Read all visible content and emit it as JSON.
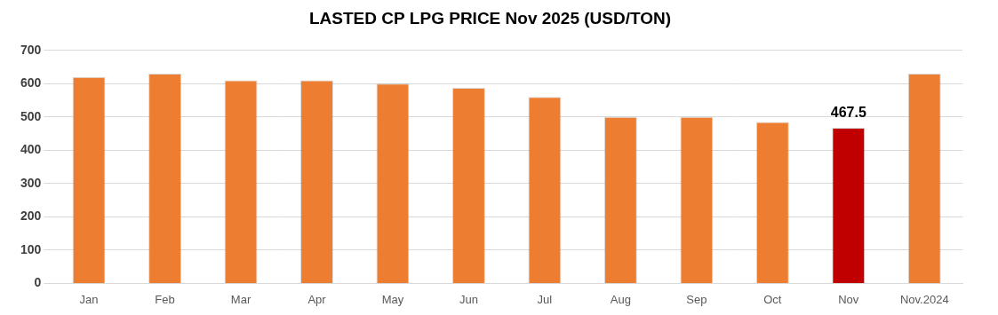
{
  "chart_data": {
    "type": "bar",
    "title": "LASTED CP LPG PRICE Nov 2025 (USD/TON)",
    "categories": [
      "Jan",
      "Feb",
      "Mar",
      "Apr",
      "May",
      "Jun",
      "Jul",
      "Aug",
      "Sep",
      "Oct",
      "Nov",
      "Nov.2024"
    ],
    "values": [
      620,
      630,
      610,
      610,
      600,
      587.5,
      560,
      500,
      500,
      485,
      467.5,
      630
    ],
    "value_labels": [
      null,
      null,
      null,
      null,
      null,
      null,
      null,
      null,
      null,
      null,
      "467.5",
      null
    ],
    "colors": [
      "#ED7D31",
      "#ED7D31",
      "#ED7D31",
      "#ED7D31",
      "#ED7D31",
      "#ED7D31",
      "#ED7D31",
      "#ED7D31",
      "#ED7D31",
      "#ED7D31",
      "#C00000",
      "#ED7D31"
    ],
    "ylim": [
      0,
      700
    ],
    "yticks": [
      0,
      100,
      200,
      300,
      400,
      500,
      600,
      700
    ],
    "grid": true
  }
}
